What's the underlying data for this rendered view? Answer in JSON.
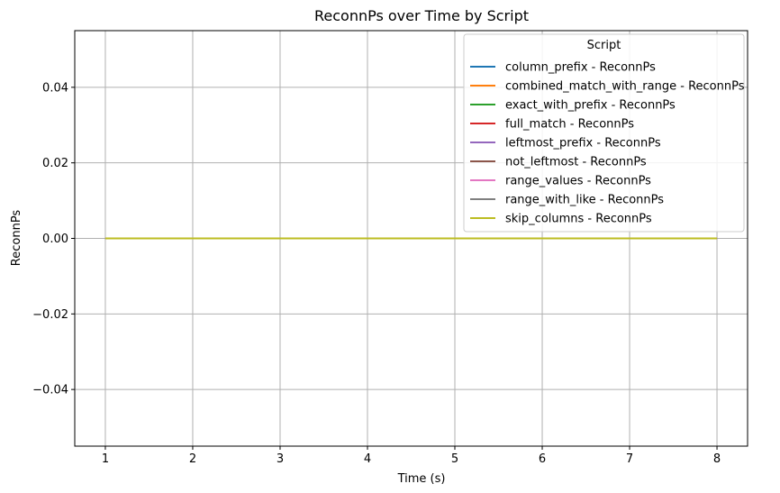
{
  "chart_data": {
    "type": "line",
    "title": "ReconnPs over Time by Script",
    "xlabel": "Time (s)",
    "ylabel": "ReconnPs",
    "xlim": [
      0.65,
      8.35
    ],
    "ylim": [
      -0.055,
      0.055
    ],
    "x_ticks": [
      1,
      2,
      3,
      4,
      5,
      6,
      7,
      8
    ],
    "y_ticks": [
      -0.04,
      -0.02,
      0.0,
      0.02,
      0.04
    ],
    "y_tick_labels": [
      "−0.04",
      "−0.02",
      "0.00",
      "0.02",
      "0.04"
    ],
    "grid": true,
    "legend_title": "Script",
    "legend_position": "top-right",
    "x": [
      1,
      2,
      3,
      4,
      5,
      6,
      7,
      8
    ],
    "series": [
      {
        "name": "column_prefix - ReconnPs",
        "color": "#1f77b4",
        "values": [
          0,
          0,
          0,
          0,
          0,
          0,
          0,
          0
        ]
      },
      {
        "name": "combined_match_with_range - ReconnPs",
        "color": "#ff7f0e",
        "values": [
          0,
          0,
          0,
          0,
          0,
          0,
          0,
          0
        ]
      },
      {
        "name": "exact_with_prefix - ReconnPs",
        "color": "#2ca02c",
        "values": [
          0,
          0,
          0,
          0,
          0,
          0,
          0,
          0
        ]
      },
      {
        "name": "full_match - ReconnPs",
        "color": "#d62728",
        "values": [
          0,
          0,
          0,
          0,
          0,
          0,
          0,
          0
        ]
      },
      {
        "name": "leftmost_prefix - ReconnPs",
        "color": "#9467bd",
        "values": [
          0,
          0,
          0,
          0,
          0,
          0,
          0,
          0
        ]
      },
      {
        "name": "not_leftmost - ReconnPs",
        "color": "#8c564b",
        "values": [
          0,
          0,
          0,
          0,
          0,
          0,
          0,
          0
        ]
      },
      {
        "name": "range_values - ReconnPs",
        "color": "#e377c2",
        "values": [
          0,
          0,
          0,
          0,
          0,
          0,
          0,
          0
        ]
      },
      {
        "name": "range_with_like - ReconnPs",
        "color": "#7f7f7f",
        "values": [
          0,
          0,
          0,
          0,
          0,
          0,
          0,
          0
        ]
      },
      {
        "name": "skip_columns - ReconnPs",
        "color": "#bcbd22",
        "values": [
          0,
          0,
          0,
          0,
          0,
          0,
          0,
          0
        ]
      }
    ]
  }
}
